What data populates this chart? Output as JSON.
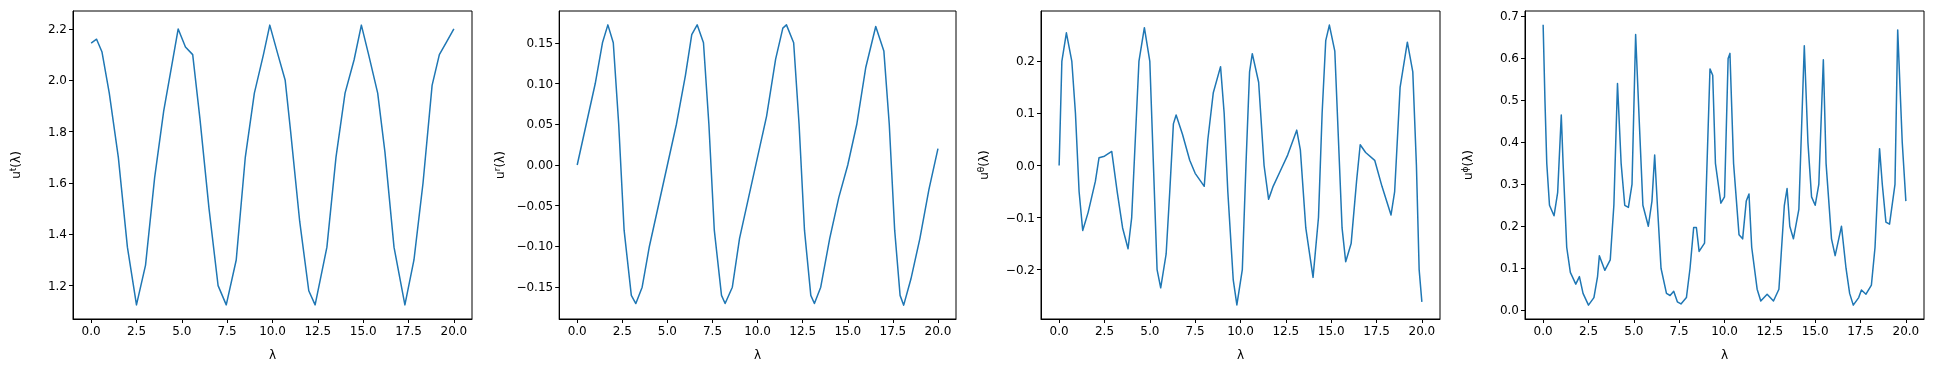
{
  "chart_data": [
    {
      "type": "line",
      "xlabel": "λ",
      "ylabel": "u$^{t}$(λ)",
      "grid": false,
      "marker": "none",
      "line_style": "solid",
      "xlim": [
        -1,
        21
      ],
      "xticks": [
        {
          "value": 0,
          "label": "0.0"
        },
        {
          "value": 2.5,
          "label": "2.5"
        },
        {
          "value": 5,
          "label": "5.0"
        },
        {
          "value": 7.5,
          "label": "7.5"
        },
        {
          "value": 10,
          "label": "10.0"
        },
        {
          "value": 12.5,
          "label": "12.5"
        },
        {
          "value": 15,
          "label": "15.0"
        },
        {
          "value": 17.5,
          "label": "17.5"
        },
        {
          "value": 20,
          "label": "20.0"
        }
      ],
      "ylim": [
        1.07,
        2.27
      ],
      "yticks": [
        1.2,
        1.4,
        1.6,
        1.8,
        {
          "value": 2,
          "label": "2.0"
        },
        2.2
      ],
      "series": [
        {
          "color": "#1f77b4",
          "x": [
            0,
            0.3,
            0.6,
            1.0,
            1.5,
            2.0,
            2.5,
            3.0,
            3.5,
            4.0,
            4.5,
            4.8,
            5.2,
            5.6,
            6.0,
            6.5,
            7.0,
            7.45,
            8.0,
            8.5,
            9.0,
            9.5,
            9.85,
            10.3,
            10.7,
            11.0,
            11.5,
            12.0,
            12.35,
            13.0,
            13.5,
            14.0,
            14.5,
            14.9,
            15.3,
            15.8,
            16.2,
            16.7,
            17.3,
            17.8,
            18.3,
            18.8,
            19.2,
            19.6,
            20
          ],
          "values": [
            2.145,
            2.16,
            2.11,
            1.95,
            1.7,
            1.35,
            1.125,
            1.28,
            1.62,
            1.88,
            2.08,
            2.2,
            2.13,
            2.1,
            1.85,
            1.5,
            1.2,
            1.125,
            1.3,
            1.7,
            1.95,
            2.1,
            2.215,
            2.1,
            2.0,
            1.8,
            1.45,
            1.18,
            1.125,
            1.35,
            1.7,
            1.95,
            2.08,
            2.215,
            2.1,
            1.95,
            1.72,
            1.35,
            1.125,
            1.3,
            1.6,
            1.98,
            2.1,
            2.15,
            2.2
          ]
        }
      ]
    },
    {
      "type": "line",
      "xlabel": "λ",
      "ylabel": "u$^{r}$(λ)",
      "grid": false,
      "marker": "none",
      "line_style": "solid",
      "xlim": [
        -1,
        21
      ],
      "xticks": [
        {
          "value": 0,
          "label": "0.0"
        },
        {
          "value": 2.5,
          "label": "2.5"
        },
        {
          "value": 5,
          "label": "5.0"
        },
        {
          "value": 7.5,
          "label": "7.5"
        },
        {
          "value": 10,
          "label": "10.0"
        },
        {
          "value": 12.5,
          "label": "12.5"
        },
        {
          "value": 15,
          "label": "15.0"
        },
        {
          "value": 17.5,
          "label": "17.5"
        },
        {
          "value": 20,
          "label": "20.0"
        }
      ],
      "ylim": [
        -0.189,
        0.189
      ],
      "yticks": [
        {
          "value": -0.15,
          "label": "−0.15"
        },
        {
          "value": -0.1,
          "label": "−0.10"
        },
        {
          "value": -0.05,
          "label": "−0.05"
        },
        {
          "value": 0,
          "label": "0.00"
        },
        0.05,
        {
          "value": 0.1,
          "label": "0.10"
        },
        0.15
      ],
      "series": [
        {
          "color": "#1f77b4",
          "x": [
            0,
            0.5,
            1.0,
            1.4,
            1.7,
            2.0,
            2.3,
            2.6,
            3.0,
            3.25,
            3.6,
            4.0,
            4.5,
            5.0,
            5.5,
            6.0,
            6.35,
            6.65,
            7.0,
            7.3,
            7.6,
            8.0,
            8.2,
            8.6,
            9.0,
            9.5,
            10.0,
            10.5,
            11.0,
            11.4,
            11.6,
            12.0,
            12.3,
            12.6,
            12.95,
            13.15,
            13.5,
            14.0,
            14.5,
            15.0,
            15.5,
            16.0,
            16.55,
            17.0,
            17.3,
            17.6,
            17.9,
            18.1,
            18.5,
            19.0,
            19.5,
            20
          ],
          "values": [
            0,
            0.05,
            0.1,
            0.15,
            0.172,
            0.15,
            0.05,
            -0.08,
            -0.16,
            -0.17,
            -0.15,
            -0.1,
            -0.05,
            0.0,
            0.05,
            0.11,
            0.16,
            0.172,
            0.15,
            0.05,
            -0.08,
            -0.16,
            -0.17,
            -0.15,
            -0.09,
            -0.04,
            0.01,
            0.06,
            0.13,
            0.168,
            0.172,
            0.15,
            0.05,
            -0.08,
            -0.16,
            -0.17,
            -0.15,
            -0.09,
            -0.04,
            0.0,
            0.05,
            0.12,
            0.17,
            0.14,
            0.05,
            -0.08,
            -0.16,
            -0.172,
            -0.14,
            -0.09,
            -0.03,
            0.02
          ]
        }
      ]
    },
    {
      "type": "line",
      "xlabel": "λ",
      "ylabel": "u$^{θ}$(λ)",
      "grid": false,
      "marker": "none",
      "line_style": "solid",
      "xlim": [
        -1,
        21
      ],
      "xticks": [
        {
          "value": 0,
          "label": "0.0"
        },
        {
          "value": 2.5,
          "label": "2.5"
        },
        {
          "value": 5,
          "label": "5.0"
        },
        {
          "value": 7.5,
          "label": "7.5"
        },
        {
          "value": 10,
          "label": "10.0"
        },
        {
          "value": 12.5,
          "label": "12.5"
        },
        {
          "value": 15,
          "label": "15.0"
        },
        {
          "value": 17.5,
          "label": "17.5"
        },
        {
          "value": 20,
          "label": "20.0"
        }
      ],
      "ylim": [
        -0.295,
        0.297
      ],
      "yticks": [
        {
          "value": -0.2,
          "label": "−0.2"
        },
        {
          "value": -0.1,
          "label": "−0.1"
        },
        {
          "value": 0,
          "label": "0.0"
        },
        0.1,
        0.2
      ],
      "series": [
        {
          "color": "#1f77b4",
          "x": [
            0,
            0.15,
            0.4,
            0.7,
            0.9,
            1.1,
            1.3,
            1.6,
            2.0,
            2.2,
            2.5,
            2.9,
            3.2,
            3.5,
            3.8,
            4.0,
            4.2,
            4.4,
            4.7,
            5.0,
            5.2,
            5.4,
            5.6,
            5.9,
            6.1,
            6.3,
            6.45,
            6.8,
            7.2,
            7.5,
            7.8,
            8.0,
            8.2,
            8.5,
            8.9,
            9.1,
            9.3,
            9.6,
            9.8,
            10.1,
            10.3,
            10.5,
            10.65,
            11.0,
            11.3,
            11.55,
            11.8,
            12.2,
            12.6,
            13.1,
            13.3,
            13.6,
            14.0,
            14.3,
            14.5,
            14.7,
            14.9,
            15.2,
            15.4,
            15.6,
            15.8,
            16.1,
            16.4,
            16.6,
            16.9,
            17.4,
            17.8,
            18.3,
            18.5,
            18.8,
            19.2,
            19.5,
            19.7,
            19.85,
            20
          ],
          "values": [
            0,
            0.2,
            0.255,
            0.2,
            0.1,
            -0.05,
            -0.125,
            -0.09,
            -0.03,
            0.015,
            0.018,
            0.027,
            -0.05,
            -0.12,
            -0.16,
            -0.1,
            0.05,
            0.2,
            0.265,
            0.2,
            0.0,
            -0.2,
            -0.235,
            -0.17,
            -0.05,
            0.08,
            0.097,
            0.06,
            0.01,
            -0.015,
            -0.03,
            -0.04,
            0.05,
            0.14,
            0.19,
            0.1,
            -0.05,
            -0.22,
            -0.268,
            -0.2,
            0.0,
            0.18,
            0.215,
            0.16,
            0.0,
            -0.065,
            -0.04,
            -0.01,
            0.02,
            0.068,
            0.03,
            -0.12,
            -0.215,
            -0.1,
            0.1,
            0.24,
            0.27,
            0.22,
            0.05,
            -0.12,
            -0.185,
            -0.15,
            -0.03,
            0.04,
            0.025,
            0.01,
            -0.04,
            -0.095,
            -0.05,
            0.15,
            0.237,
            0.18,
            0.0,
            -0.2,
            -0.262
          ]
        }
      ]
    },
    {
      "type": "line",
      "xlabel": "λ",
      "ylabel": "u$^{ϕ}$(λ)",
      "grid": false,
      "marker": "none",
      "line_style": "solid",
      "xlim": [
        -1,
        21
      ],
      "xticks": [
        {
          "value": 0,
          "label": "0.0"
        },
        {
          "value": 2.5,
          "label": "2.5"
        },
        {
          "value": 5,
          "label": "5.0"
        },
        {
          "value": 7.5,
          "label": "7.5"
        },
        {
          "value": 10,
          "label": "10.0"
        },
        {
          "value": 12.5,
          "label": "12.5"
        },
        {
          "value": 15,
          "label": "15.0"
        },
        {
          "value": 17.5,
          "label": "17.5"
        },
        {
          "value": 20,
          "label": "20.0"
        }
      ],
      "ylim": [
        -0.021,
        0.713
      ],
      "yticks": [
        {
          "value": 0,
          "label": "0.0"
        },
        0.1,
        0.2,
        0.3,
        0.4,
        0.5,
        0.6,
        0.7
      ],
      "series": [
        {
          "color": "#1f77b4",
          "x": [
            0,
            0.1,
            0.2,
            0.35,
            0.6,
            0.8,
            1.0,
            1.1,
            1.3,
            1.5,
            1.8,
            2.0,
            2.2,
            2.5,
            2.8,
            3.0,
            3.1,
            3.4,
            3.7,
            3.9,
            4.1,
            4.3,
            4.5,
            4.7,
            4.9,
            5.1,
            5.3,
            5.5,
            5.8,
            6.0,
            6.15,
            6.3,
            6.5,
            6.8,
            7.0,
            7.2,
            7.4,
            7.6,
            7.9,
            8.1,
            8.3,
            8.45,
            8.6,
            8.9,
            9.2,
            9.35,
            9.5,
            9.8,
            10.0,
            10.2,
            10.3,
            10.5,
            10.8,
            11.0,
            11.2,
            11.35,
            11.5,
            11.8,
            12.0,
            12.35,
            12.7,
            13.0,
            13.3,
            13.45,
            13.6,
            13.8,
            14.1,
            14.4,
            14.6,
            14.8,
            15.0,
            15.2,
            15.45,
            15.6,
            15.9,
            16.1,
            16.3,
            16.45,
            16.7,
            16.9,
            17.1,
            17.4,
            17.55,
            17.8,
            18.1,
            18.3,
            18.55,
            18.7,
            18.9,
            19.1,
            19.4,
            19.55,
            19.8,
            20
          ],
          "values": [
            0.68,
            0.5,
            0.35,
            0.25,
            0.225,
            0.28,
            0.465,
            0.35,
            0.15,
            0.09,
            0.062,
            0.08,
            0.04,
            0.012,
            0.03,
            0.08,
            0.13,
            0.095,
            0.12,
            0.25,
            0.54,
            0.35,
            0.25,
            0.245,
            0.3,
            0.657,
            0.45,
            0.25,
            0.2,
            0.26,
            0.37,
            0.25,
            0.1,
            0.04,
            0.035,
            0.045,
            0.02,
            0.015,
            0.03,
            0.1,
            0.197,
            0.197,
            0.14,
            0.16,
            0.575,
            0.56,
            0.35,
            0.255,
            0.27,
            0.6,
            0.612,
            0.35,
            0.18,
            0.17,
            0.26,
            0.277,
            0.15,
            0.05,
            0.022,
            0.038,
            0.022,
            0.05,
            0.25,
            0.29,
            0.2,
            0.17,
            0.24,
            0.63,
            0.4,
            0.27,
            0.25,
            0.3,
            0.597,
            0.35,
            0.17,
            0.13,
            0.17,
            0.2,
            0.1,
            0.04,
            0.012,
            0.03,
            0.048,
            0.038,
            0.06,
            0.15,
            0.385,
            0.3,
            0.21,
            0.205,
            0.3,
            0.668,
            0.4,
            0.26
          ]
        }
      ]
    }
  ]
}
